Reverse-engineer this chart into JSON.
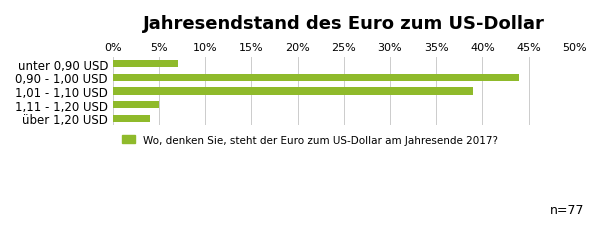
{
  "title": "Jahresendstand des Euro zum US-Dollar",
  "categories": [
    "unter 0,90 USD",
    "0,90 - 1,00 USD",
    "1,01 - 1,10 USD",
    "1,11 - 1,20 USD",
    "über 1,20 USD"
  ],
  "values": [
    7,
    44,
    39,
    5,
    4
  ],
  "bar_color": "#8fba2b",
  "xlim": [
    0,
    50
  ],
  "xticks": [
    0,
    5,
    10,
    15,
    20,
    25,
    30,
    35,
    40,
    45,
    50
  ],
  "xtick_labels": [
    "0%",
    "5%",
    "10%",
    "15%",
    "20%",
    "25%",
    "30%",
    "35%",
    "40%",
    "45%",
    "50%"
  ],
  "legend_label": "Wo, denken Sie, steht der Euro zum US-Dollar am Jahresende 2017?",
  "note": "n=77",
  "background_color": "#ffffff",
  "grid_color": "#cccccc",
  "title_fontsize": 13,
  "label_fontsize": 8.5,
  "tick_fontsize": 8,
  "legend_fontsize": 7.5,
  "note_fontsize": 9
}
